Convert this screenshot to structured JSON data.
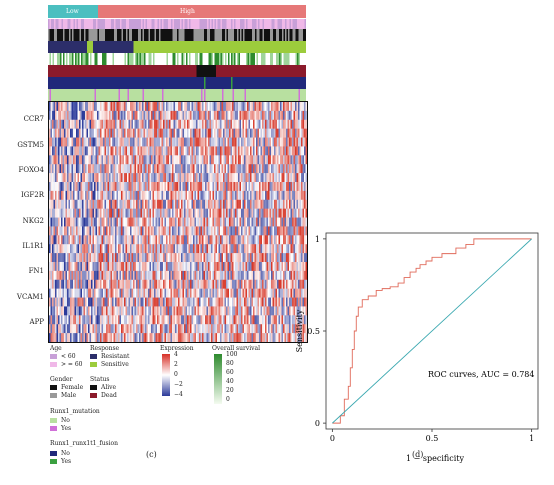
{
  "heatmap": {
    "group_labels": [
      "Low",
      "High"
    ],
    "genes": [
      "CCR7",
      "GSTM5",
      "FOXO4",
      "IGF2R",
      "NKG2",
      "IL1R1",
      "FN1",
      "VCAM1",
      "APP"
    ],
    "panel_label": "(c)"
  },
  "legends": {
    "age": {
      "title": "Age",
      "items": [
        "< 60",
        "> = 60"
      ],
      "colors": [
        "#c8a0d8",
        "#f0b8e8"
      ]
    },
    "response": {
      "title": "Response",
      "items": [
        "Resistant",
        "Sensitive"
      ],
      "colors": [
        "#2c2e6a",
        "#9ccc3c"
      ]
    },
    "gender": {
      "title": "Gender",
      "items": [
        "Female",
        "Male"
      ],
      "colors": [
        "#111111",
        "#999999"
      ]
    },
    "status": {
      "title": "Status",
      "items": [
        "Alive",
        "Dead"
      ],
      "colors": [
        "#111111",
        "#8b1a2b"
      ]
    },
    "runx1_mutation": {
      "title": "Runx1_mutation",
      "items": [
        "No",
        "Yes"
      ],
      "colors": [
        "#b8e0a0",
        "#d070d8"
      ]
    },
    "runx1_fusion": {
      "title": "Runx1_runx1t1_fusion",
      "items": [
        "No",
        "Yes"
      ],
      "colors": [
        "#20287a",
        "#3aa040"
      ]
    },
    "expression": {
      "title": "Expression",
      "ticks": [
        "4",
        "2",
        "0",
        "−2",
        "−4"
      ]
    },
    "overall_survival": {
      "title": "Overall survival",
      "ticks": [
        "100",
        "80",
        "60",
        "40",
        "20",
        "0"
      ]
    }
  },
  "chart_data": {
    "type": "line",
    "xlabel": "1 − specificity",
    "ylabel": "Sensitivity",
    "xlim": [
      0,
      1
    ],
    "ylim": [
      0,
      1
    ],
    "xticks": [
      "0",
      "0.5",
      "1"
    ],
    "yticks": [
      "0",
      "0.5",
      "1"
    ],
    "annotation": "ROC curves, AUC = 0.784",
    "panel_label": "(d)",
    "series": [
      {
        "color": "#e06a5a",
        "x": [
          0,
          0.04,
          0.04,
          0.06,
          0.06,
          0.08,
          0.08,
          0.09,
          0.09,
          0.1,
          0.1,
          0.11,
          0.11,
          0.12,
          0.12,
          0.13,
          0.13,
          0.15,
          0.15,
          0.18,
          0.18,
          0.22,
          0.22,
          0.25,
          0.25,
          0.29,
          0.29,
          0.33,
          0.33,
          0.36,
          0.36,
          0.39,
          0.39,
          0.42,
          0.42,
          0.44,
          0.44,
          0.47,
          0.47,
          0.5,
          0.5,
          0.55,
          0.55,
          0.62,
          0.62,
          0.67,
          0.67,
          0.71,
          0.71,
          1.0
        ],
        "y": [
          0,
          0,
          0.04,
          0.04,
          0.13,
          0.13,
          0.2,
          0.2,
          0.3,
          0.3,
          0.4,
          0.4,
          0.5,
          0.5,
          0.58,
          0.58,
          0.63,
          0.63,
          0.67,
          0.67,
          0.69,
          0.69,
          0.72,
          0.72,
          0.73,
          0.73,
          0.74,
          0.74,
          0.76,
          0.76,
          0.79,
          0.79,
          0.82,
          0.82,
          0.84,
          0.84,
          0.86,
          0.86,
          0.88,
          0.88,
          0.9,
          0.9,
          0.92,
          0.92,
          0.95,
          0.95,
          0.97,
          0.97,
          1.0,
          1.0
        ]
      },
      {
        "color": "#3aa8b0",
        "x": [
          0,
          1
        ],
        "y": [
          0,
          1
        ]
      }
    ]
  }
}
